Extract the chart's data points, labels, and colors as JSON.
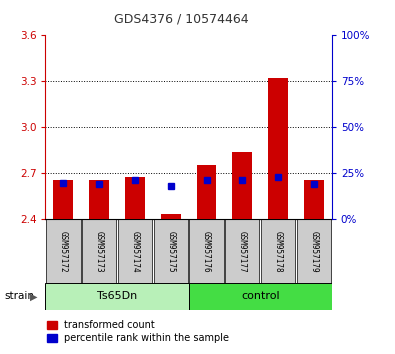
{
  "title": "GDS4376 / 10574464",
  "samples": [
    "GSM957172",
    "GSM957173",
    "GSM957174",
    "GSM957175",
    "GSM957176",
    "GSM957177",
    "GSM957178",
    "GSM957179"
  ],
  "red_values": [
    2.655,
    2.655,
    2.675,
    2.435,
    2.755,
    2.84,
    3.325,
    2.655
  ],
  "blue_values": [
    2.635,
    2.63,
    2.66,
    2.62,
    2.66,
    2.655,
    2.68,
    2.63
  ],
  "ymin": 2.4,
  "ymax": 3.6,
  "yticks": [
    2.4,
    2.7,
    3.0,
    3.3,
    3.6
  ],
  "right_yticks": [
    0,
    25,
    50,
    75,
    100
  ],
  "right_yticklabels": [
    "0%",
    "25%",
    "50%",
    "75%",
    "100%"
  ],
  "bar_color": "#cc0000",
  "blue_color": "#0000cc",
  "bar_width": 0.55,
  "legend_red": "transformed count",
  "legend_blue": "percentile rank within the sample",
  "strain_label": "strain",
  "group_label_ts": "Ts65Dn",
  "group_label_ctrl": "control",
  "title_color": "#333333",
  "left_axis_color": "#cc0000",
  "right_axis_color": "#0000cc",
  "ts65dn_color": "#b8f0b8",
  "control_color": "#44dd44",
  "gray_label_color": "#cccccc"
}
